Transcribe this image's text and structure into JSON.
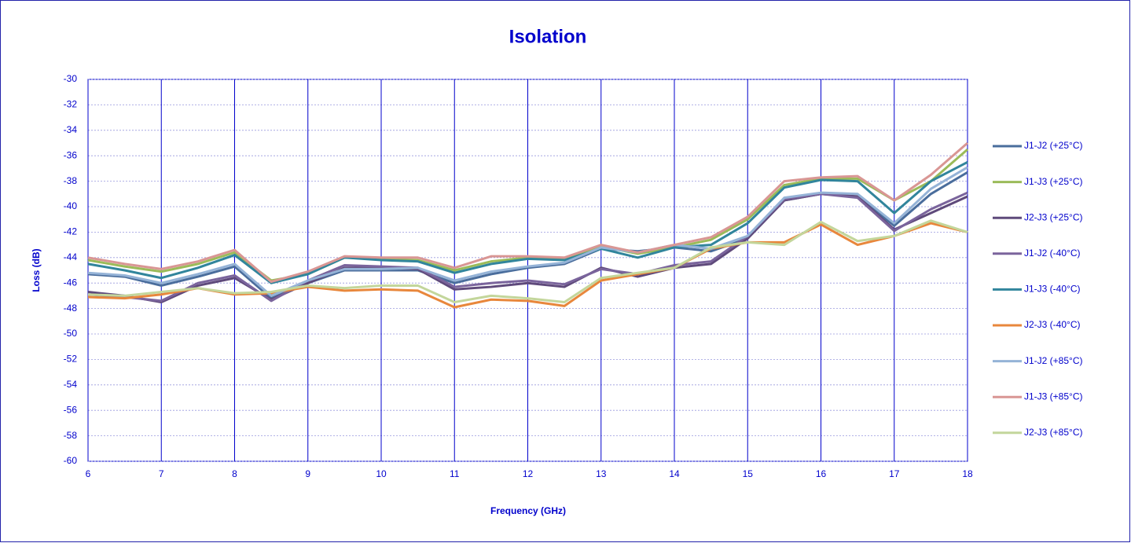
{
  "chart_data": {
    "type": "line",
    "title": "Isolation",
    "xlabel": "Frequency (GHz)",
    "ylabel": "Loss (dB)",
    "x": [
      6,
      6.5,
      7,
      7.5,
      8,
      8.5,
      9,
      9.5,
      10,
      10.5,
      11,
      11.5,
      12,
      12.5,
      13,
      13.5,
      14,
      14.5,
      15,
      15.5,
      16,
      16.5,
      17,
      17.5,
      18
    ],
    "xlim": [
      6,
      18
    ],
    "xticks": [
      6,
      7,
      8,
      9,
      10,
      11,
      12,
      13,
      14,
      15,
      16,
      17,
      18
    ],
    "ylim": [
      -60,
      -30
    ],
    "yticks": [
      -30,
      -32,
      -34,
      -36,
      -38,
      -40,
      -42,
      -44,
      -46,
      -48,
      -50,
      -52,
      -54,
      -56,
      -58,
      -60
    ],
    "grid": true,
    "legend": "right",
    "series": [
      {
        "name": "J1-J2 (+25°C)",
        "color": "#4a6d9c",
        "values": [
          -45.3,
          -45.5,
          -46.2,
          -45.5,
          -44.7,
          -47.2,
          -46,
          -45,
          -45,
          -45,
          -46,
          -45.3,
          -44.8,
          -44.5,
          -43.3,
          -43.5,
          -43.2,
          -43.5,
          -42.5,
          -39.5,
          -39,
          -39.2,
          -41.5,
          -39,
          -37.3
        ]
      },
      {
        "name": "J1-J3 (+25°C)",
        "color": "#9bbb59",
        "values": [
          -44.2,
          -44.7,
          -45.1,
          -44.5,
          -43.6,
          -45.8,
          -45.3,
          -44,
          -44.1,
          -44.2,
          -45,
          -44.3,
          -44,
          -44.1,
          -43.1,
          -43.7,
          -43.2,
          -42.6,
          -41,
          -38.3,
          -37.8,
          -37.8,
          -39.5,
          -38,
          -35.5
        ]
      },
      {
        "name": "J2-J3 (+25°C)",
        "color": "#5f4a7b",
        "values": [
          -46.7,
          -47,
          -47.5,
          -46.2,
          -45.6,
          -47.3,
          -46,
          -44.8,
          -44.8,
          -44.9,
          -46.5,
          -46.3,
          -46,
          -46.3,
          -44.8,
          -45.5,
          -44.8,
          -44.5,
          -42.5,
          -39.5,
          -39,
          -39.2,
          -41.8,
          -40.5,
          -39.2
        ]
      },
      {
        "name": "J1-J2 (-40°C)",
        "color": "#7a649c",
        "values": [
          -46.9,
          -47.1,
          -47.4,
          -46,
          -45.4,
          -47.4,
          -45.8,
          -44.6,
          -44.7,
          -44.8,
          -46.3,
          -46,
          -45.8,
          -46.1,
          -44.9,
          -45.3,
          -44.6,
          -44.3,
          -42.3,
          -39.4,
          -39,
          -39.3,
          -41.9,
          -40.2,
          -38.9
        ]
      },
      {
        "name": "J1-J3 (-40°C)",
        "color": "#31859c",
        "values": [
          -44.5,
          -45,
          -45.6,
          -44.8,
          -43.8,
          -46,
          -45.3,
          -44,
          -44.2,
          -44.3,
          -45.2,
          -44.5,
          -44.1,
          -44.2,
          -43.3,
          -44,
          -43.2,
          -43,
          -41.3,
          -38.5,
          -37.9,
          -38,
          -40.5,
          -38,
          -36.5
        ]
      },
      {
        "name": "J2-J3 (-40°C)",
        "color": "#e8873c",
        "values": [
          -47.1,
          -47.2,
          -46.9,
          -46.4,
          -46.9,
          -46.8,
          -46.3,
          -46.6,
          -46.5,
          -46.6,
          -47.9,
          -47.3,
          -47.4,
          -47.8,
          -45.8,
          -45.3,
          -44.8,
          -43.3,
          -42.8,
          -42.8,
          -41.4,
          -43,
          -42.3,
          -41.3,
          -42
        ]
      },
      {
        "name": "J1-J2 (+85°C)",
        "color": "#95b3d7",
        "values": [
          -45.2,
          -45.4,
          -46,
          -45.3,
          -44.5,
          -47,
          -45.8,
          -44.9,
          -44.9,
          -44.8,
          -45.8,
          -45.1,
          -44.7,
          -44.4,
          -43.2,
          -43.6,
          -43,
          -43.3,
          -42.3,
          -39.3,
          -38.9,
          -39,
          -41.3,
          -38.6,
          -36.9
        ]
      },
      {
        "name": "J1-J3 (+85°C)",
        "color": "#d99694",
        "values": [
          -44,
          -44.5,
          -44.9,
          -44.3,
          -43.4,
          -45.9,
          -45.1,
          -43.9,
          -44,
          -44,
          -44.8,
          -43.9,
          -43.9,
          -44,
          -43,
          -43.6,
          -43,
          -42.4,
          -40.8,
          -38,
          -37.7,
          -37.6,
          -39.5,
          -37.5,
          -35
        ]
      },
      {
        "name": "J2-J3 (+85°C)",
        "color": "#c3d69b",
        "values": [
          -46.9,
          -47,
          -46.7,
          -46.4,
          -46.8,
          -46.7,
          -46.2,
          -46.4,
          -46.2,
          -46.2,
          -47.5,
          -47,
          -47.2,
          -47.5,
          -45.6,
          -45.2,
          -44.8,
          -43.2,
          -42.8,
          -43,
          -41.2,
          -42.7,
          -42.3,
          -41.1,
          -42
        ]
      }
    ]
  }
}
